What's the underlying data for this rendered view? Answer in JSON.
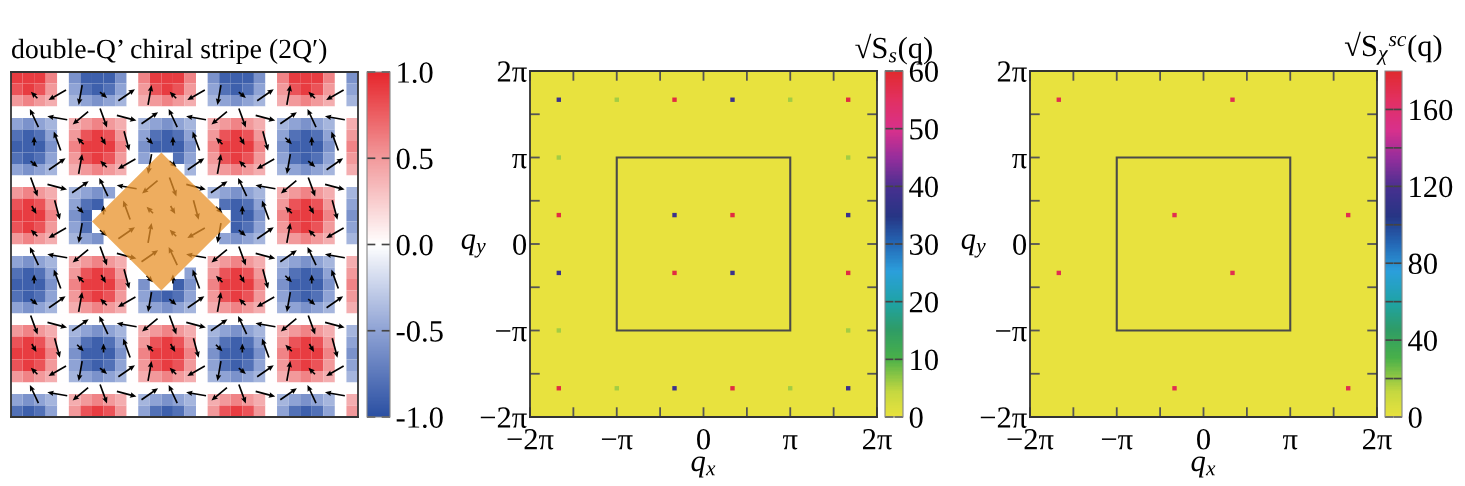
{
  "chart_data": [
    {
      "type": "heatmap",
      "title": "double-Q’ chiral stripe (2Q′)",
      "categories": [
        null,
        null,
        null,
        null,
        null,
        null,
        null,
        null,
        null,
        null,
        null,
        null,
        null,
        null,
        null,
        null,
        null,
        null,
        null,
        null,
        null,
        null,
        null,
        null,
        null,
        null,
        null,
        null,
        null,
        null
      ],
      "y_categories": [
        null,
        null,
        null,
        null,
        null,
        null,
        null,
        null,
        null,
        null,
        null,
        null,
        null,
        null,
        null,
        null,
        null,
        null,
        null,
        null,
        null,
        null,
        null,
        null,
        null,
        null,
        null,
        null,
        null,
        null
      ],
      "cells": [
        [
          0.9,
          0.9,
          0.9,
          0.6,
          0,
          -0.6,
          -0.9,
          -0.9,
          -0.9,
          -0.6,
          0,
          0.6,
          0.9,
          0.9,
          0.9,
          0.6,
          0,
          -0.6,
          -0.9,
          -0.9,
          -0.9,
          -0.6,
          0,
          0.6,
          0.9,
          0.9,
          0.9,
          0.6,
          0,
          -0.6
        ],
        [
          0.8,
          0.9,
          0.8,
          0.5,
          0,
          -0.5,
          -0.8,
          -0.9,
          -0.8,
          -0.5,
          0,
          0.5,
          0.8,
          0.9,
          0.8,
          0.5,
          0,
          -0.5,
          -0.8,
          -0.9,
          -0.8,
          -0.5,
          0,
          0.5,
          0.8,
          0.9,
          0.8,
          0.5,
          0,
          -0.5
        ],
        [
          0.5,
          0.6,
          0.5,
          0.4,
          0,
          -0.4,
          -0.5,
          -0.6,
          -0.5,
          -0.4,
          0,
          0.4,
          0.5,
          0.6,
          0.5,
          0.4,
          0,
          -0.4,
          -0.5,
          -0.6,
          -0.5,
          -0.4,
          0,
          0.4,
          0.5,
          0.6,
          0.5,
          0.4,
          0,
          -0.4
        ],
        [
          0,
          0,
          0,
          0,
          0,
          0,
          0,
          0,
          0,
          0,
          0,
          0,
          0,
          0,
          0,
          0,
          0,
          0,
          0,
          0,
          0,
          0,
          0,
          0,
          0,
          0,
          0,
          0,
          0,
          0
        ],
        [
          -0.5,
          -0.6,
          -0.5,
          -0.4,
          0,
          0.4,
          0.5,
          0.6,
          0.5,
          0.4,
          0,
          -0.4,
          -0.5,
          -0.6,
          -0.5,
          -0.4,
          0,
          0.4,
          0.5,
          0.6,
          0.5,
          0.4,
          0,
          -0.4,
          -0.5,
          -0.6,
          -0.5,
          -0.4,
          0,
          0.4
        ],
        [
          -0.8,
          -0.9,
          -0.8,
          -0.5,
          0,
          0.5,
          0.8,
          0.9,
          0.8,
          0.5,
          0,
          -0.5,
          -0.8,
          -0.9,
          -0.8,
          -0.5,
          0,
          0.5,
          0.8,
          0.9,
          0.8,
          0.5,
          0,
          -0.5,
          -0.8,
          -0.9,
          -0.8,
          -0.5,
          0,
          0.5
        ],
        [
          -0.9,
          -0.9,
          -0.9,
          -0.6,
          0,
          0.6,
          0.9,
          0.9,
          0.9,
          0.6,
          0,
          -0.6,
          -0.9,
          -0.9,
          -0.9,
          -0.6,
          0,
          0.6,
          0.9,
          0.9,
          0.9,
          0.6,
          0,
          -0.6,
          -0.9,
          -0.9,
          -0.9,
          -0.6,
          0,
          0.6
        ],
        [
          -0.8,
          -0.9,
          -0.8,
          -0.5,
          0,
          0.5,
          0.8,
          0.9,
          0.8,
          0.5,
          0,
          -0.5,
          null,
          null,
          -0.8,
          -0.5,
          0,
          0.5,
          0.8,
          0.9,
          0.8,
          0.5,
          0,
          -0.5,
          -0.8,
          -0.9,
          -0.8,
          -0.5,
          0,
          0.5
        ],
        [
          -0.5,
          -0.6,
          -0.5,
          -0.4,
          0,
          0.4,
          0.5,
          0.6,
          0.5,
          0.4,
          0,
          null,
          null,
          null,
          null,
          -0.4,
          0,
          0.4,
          0.5,
          0.6,
          0.5,
          0.4,
          0,
          -0.4,
          -0.5,
          -0.6,
          -0.5,
          -0.4,
          0,
          0.4
        ],
        [
          0,
          0,
          0,
          0,
          0,
          0,
          0,
          0,
          0,
          0,
          null,
          null,
          null,
          null,
          null,
          null,
          0,
          0,
          0,
          0,
          0,
          0,
          0,
          0,
          0,
          0,
          0,
          0,
          0,
          0
        ],
        [
          0.5,
          0.6,
          0.5,
          0.4,
          0,
          -0.4,
          -0.5,
          -0.6,
          -0.5,
          null,
          null,
          null,
          null,
          null,
          null,
          null,
          null,
          -0.4,
          -0.5,
          -0.6,
          -0.5,
          -0.4,
          0,
          0.4,
          0.5,
          0.6,
          0.5,
          0.4,
          0,
          -0.4
        ],
        [
          0.8,
          0.9,
          0.8,
          0.5,
          0,
          -0.5,
          -0.8,
          -0.9,
          null,
          null,
          null,
          null,
          null,
          null,
          null,
          null,
          null,
          null,
          -0.8,
          -0.9,
          -0.8,
          -0.5,
          0,
          0.5,
          0.8,
          0.9,
          0.8,
          0.5,
          0,
          -0.5
        ],
        [
          0.9,
          0.9,
          0.9,
          0.6,
          0,
          -0.6,
          -0.9,
          null,
          null,
          null,
          null,
          null,
          null,
          null,
          null,
          null,
          null,
          null,
          null,
          -0.9,
          -0.9,
          -0.6,
          0,
          0.6,
          0.9,
          0.9,
          0.9,
          0.6,
          0,
          -0.6
        ],
        [
          0.8,
          0.9,
          0.8,
          0.5,
          0,
          -0.5,
          -0.8,
          null,
          null,
          null,
          null,
          null,
          null,
          null,
          null,
          null,
          null,
          null,
          null,
          -0.9,
          -0.8,
          -0.5,
          0,
          0.5,
          0.8,
          0.9,
          0.8,
          0.5,
          0,
          -0.5
        ],
        [
          0.5,
          0.6,
          0.5,
          0.4,
          0,
          -0.4,
          -0.5,
          -0.6,
          null,
          null,
          null,
          null,
          null,
          null,
          null,
          null,
          null,
          null,
          -0.5,
          -0.6,
          -0.5,
          -0.4,
          0,
          0.4,
          0.5,
          0.6,
          0.5,
          0.4,
          0,
          -0.4
        ],
        [
          0,
          0,
          0,
          0,
          0,
          0,
          0,
          0,
          0,
          null,
          null,
          null,
          null,
          null,
          null,
          null,
          null,
          0,
          0,
          0,
          0,
          0,
          0,
          0,
          0,
          0,
          0,
          0,
          0,
          0
        ],
        [
          -0.5,
          -0.6,
          -0.5,
          -0.4,
          0,
          0.4,
          0.5,
          0.6,
          0.5,
          0.4,
          null,
          null,
          null,
          null,
          null,
          null,
          0,
          0.4,
          0.5,
          0.6,
          0.5,
          0.4,
          0,
          -0.4,
          -0.5,
          -0.6,
          -0.5,
          -0.4,
          0,
          0.4
        ],
        [
          -0.8,
          -0.9,
          -0.8,
          -0.5,
          0,
          0.5,
          0.8,
          0.9,
          0.8,
          0.5,
          0,
          null,
          null,
          null,
          null,
          -0.5,
          0,
          0.5,
          0.8,
          0.9,
          0.8,
          0.5,
          0,
          -0.5,
          -0.8,
          -0.9,
          -0.8,
          -0.5,
          0,
          0.5
        ],
        [
          -0.9,
          -0.9,
          -0.9,
          -0.6,
          0,
          0.6,
          0.9,
          0.9,
          0.9,
          0.6,
          0,
          -0.6,
          null,
          null,
          -0.9,
          -0.6,
          0,
          0.6,
          0.9,
          0.9,
          0.9,
          0.6,
          0,
          -0.6,
          -0.9,
          -0.9,
          -0.9,
          -0.6,
          0,
          0.6
        ],
        [
          -0.8,
          -0.9,
          -0.8,
          -0.5,
          0,
          0.5,
          0.8,
          0.9,
          0.8,
          0.5,
          0,
          -0.5,
          -0.8,
          -0.9,
          -0.8,
          -0.5,
          0,
          0.5,
          0.8,
          0.9,
          0.8,
          0.5,
          0,
          -0.5,
          -0.8,
          -0.9,
          -0.8,
          -0.5,
          0,
          0.5
        ],
        [
          -0.5,
          -0.6,
          -0.5,
          -0.4,
          0,
          0.4,
          0.5,
          0.6,
          0.5,
          0.4,
          0,
          -0.4,
          -0.5,
          -0.6,
          -0.5,
          -0.4,
          0,
          0.4,
          0.5,
          0.6,
          0.5,
          0.4,
          0,
          -0.4,
          -0.5,
          -0.6,
          -0.5,
          -0.4,
          0,
          0.4
        ],
        [
          0,
          0,
          0,
          0,
          0,
          0,
          0,
          0,
          0,
          0,
          0,
          0,
          0,
          0,
          0,
          0,
          0,
          0,
          0,
          0,
          0,
          0,
          0,
          0,
          0,
          0,
          0,
          0,
          0,
          0
        ],
        [
          0.5,
          0.6,
          0.5,
          0.4,
          0,
          -0.4,
          -0.5,
          -0.6,
          -0.5,
          -0.4,
          0,
          0.4,
          0.5,
          0.6,
          0.5,
          0.4,
          0,
          -0.4,
          -0.5,
          -0.6,
          -0.5,
          -0.4,
          0,
          0.4,
          0.5,
          0.6,
          0.5,
          0.4,
          0,
          -0.4
        ],
        [
          0.8,
          0.9,
          0.8,
          0.5,
          0,
          -0.5,
          -0.8,
          -0.9,
          -0.8,
          -0.5,
          0,
          0.5,
          0.8,
          0.9,
          0.8,
          0.5,
          0,
          -0.5,
          -0.8,
          -0.9,
          -0.8,
          -0.5,
          0,
          0.5,
          0.8,
          0.9,
          0.8,
          0.5,
          0,
          -0.5
        ],
        [
          0.9,
          0.9,
          0.9,
          0.6,
          0,
          -0.6,
          -0.9,
          -0.9,
          -0.9,
          -0.6,
          0,
          0.6,
          0.9,
          0.9,
          0.9,
          0.6,
          0,
          -0.6,
          -0.9,
          -0.9,
          -0.9,
          -0.6,
          0,
          0.6,
          0.9,
          0.9,
          0.9,
          0.6,
          0,
          -0.6
        ],
        [
          0.8,
          0.9,
          0.8,
          0.5,
          0,
          -0.5,
          -0.8,
          -0.9,
          -0.8,
          -0.5,
          0,
          0.5,
          0.8,
          0.9,
          0.8,
          0.5,
          0,
          -0.5,
          -0.8,
          -0.9,
          -0.8,
          -0.5,
          0,
          0.5,
          0.8,
          0.9,
          0.8,
          0.5,
          0,
          -0.5
        ],
        [
          0.5,
          0.6,
          0.5,
          0.4,
          0,
          -0.4,
          -0.5,
          -0.6,
          -0.5,
          -0.4,
          0,
          0.4,
          0.5,
          0.6,
          0.5,
          0.4,
          0,
          -0.4,
          -0.5,
          -0.6,
          -0.5,
          -0.4,
          0,
          0.4,
          0.5,
          0.6,
          0.5,
          0.4,
          0,
          -0.4
        ],
        [
          0,
          0,
          0,
          0,
          0,
          0,
          0,
          0,
          0,
          0,
          0,
          0,
          0,
          0,
          0,
          0,
          0,
          0,
          0,
          0,
          0,
          0,
          0,
          0,
          0,
          0,
          0,
          0,
          0,
          0
        ],
        [
          -0.5,
          -0.6,
          -0.5,
          -0.4,
          0,
          0.4,
          0.5,
          0.6,
          0.5,
          0.4,
          0,
          -0.4,
          -0.5,
          -0.6,
          -0.5,
          -0.4,
          0,
          0.4,
          0.5,
          0.6,
          0.5,
          0.4,
          0,
          -0.4,
          -0.5,
          -0.6,
          -0.5,
          -0.4,
          0,
          0.4
        ],
        [
          -0.8,
          -0.9,
          -0.8,
          -0.5,
          0,
          0.5,
          0.8,
          0.9,
          0.8,
          0.5,
          0,
          -0.5,
          -0.8,
          -0.9,
          -0.8,
          -0.5,
          0,
          0.5,
          0.8,
          0.9,
          0.8,
          0.5,
          0,
          -0.5,
          -0.8,
          -0.9,
          -0.8,
          -0.5,
          0,
          0.5
        ]
      ],
      "clim": [
        -1,
        1
      ],
      "cticks": [
        {
          "value": -1,
          "label": "-1.0"
        },
        {
          "value": -0.5,
          "label": "-0.5"
        },
        {
          "value": 0,
          "label": "0.0"
        },
        {
          "value": 0.5,
          "label": "0.5"
        },
        {
          "value": 1,
          "label": "1.0"
        }
      ]
    },
    {
      "type": "scatter",
      "marker": "square",
      "xlabel": "q$_{x}$",
      "ylabel": "q$_{y}$",
      "clabel": "√S$_{s}$(q)",
      "xlim": [
        -6.2832,
        6.2832
      ],
      "ylim": [
        -6.2832,
        6.2832
      ],
      "xticks": [
        {
          "value": -6.2832,
          "label": "−2π"
        },
        {
          "value": -4.7124,
          "label": null
        },
        {
          "value": -3.1416,
          "label": "−π"
        },
        {
          "value": -1.5708,
          "label": null
        },
        0,
        {
          "value": 1.5708,
          "label": null
        },
        {
          "value": 3.1416,
          "label": "π"
        },
        {
          "value": 4.7124,
          "label": null
        },
        {
          "value": 6.2832,
          "label": "2π"
        }
      ],
      "yticks": [
        {
          "value": -6.2832,
          "label": "−2π"
        },
        {
          "value": -4.7124,
          "label": null
        },
        {
          "value": -3.1416,
          "label": "−π"
        },
        {
          "value": -1.5708,
          "label": null
        },
        0,
        {
          "value": 1.5708,
          "label": null
        },
        {
          "value": 3.1416,
          "label": "π"
        },
        {
          "value": 4.7124,
          "label": null
        },
        {
          "value": 6.2832,
          "label": "2π"
        }
      ],
      "clim": [
        0,
        60
      ],
      "cticks": [
        0,
        10,
        20,
        30,
        40,
        50,
        60
      ],
      "x": [
        -5.24,
        -3.14,
        -1.05,
        1.05,
        3.14,
        5.24,
        -5.24,
        5.24,
        -5.24,
        -1.05,
        1.05,
        5.24,
        -5.24,
        -1.05,
        1.05,
        5.24,
        -5.24,
        5.24,
        -5.24,
        -3.14,
        -1.05,
        1.05,
        3.14,
        5.24
      ],
      "values": [
        5.24,
        5.24,
        5.24,
        5.24,
        5.24,
        5.24,
        3.14,
        3.14,
        1.05,
        1.05,
        1.05,
        1.05,
        -1.05,
        -1.05,
        -1.05,
        -1.05,
        -3.14,
        -3.14,
        -5.24,
        -5.24,
        -5.24,
        -5.24,
        -5.24,
        -5.24
      ],
      "cvalues": [
        38,
        6,
        58,
        38,
        6,
        58,
        6,
        6,
        58,
        38,
        58,
        38,
        38,
        58,
        38,
        58,
        6,
        6,
        58,
        6,
        38,
        58,
        6,
        38
      ]
    },
    {
      "type": "scatter",
      "marker": "square",
      "xlabel": "q$_{x}$",
      "ylabel": "q$_{y}$",
      "clabel": "√S$_{χ}$$^{sc}$(q)",
      "xlim": [
        -6.2832,
        6.2832
      ],
      "ylim": [
        -6.2832,
        6.2832
      ],
      "xticks": [
        {
          "value": -6.2832,
          "label": "−2π"
        },
        {
          "value": -4.7124,
          "label": null
        },
        {
          "value": -3.1416,
          "label": "−π"
        },
        {
          "value": -1.5708,
          "label": null
        },
        0,
        {
          "value": 1.5708,
          "label": null
        },
        {
          "value": 3.1416,
          "label": "π"
        },
        {
          "value": 4.7124,
          "label": null
        },
        {
          "value": 6.2832,
          "label": "2π"
        }
      ],
      "yticks": [
        {
          "value": -6.2832,
          "label": "−2π"
        },
        {
          "value": -4.7124,
          "label": null
        },
        {
          "value": -3.1416,
          "label": "−π"
        },
        {
          "value": -1.5708,
          "label": null
        },
        0,
        {
          "value": 1.5708,
          "label": null
        },
        {
          "value": 3.1416,
          "label": "π"
        },
        {
          "value": 4.7124,
          "label": null
        },
        {
          "value": 6.2832,
          "label": "2π"
        }
      ],
      "clim": [
        0,
        180
      ],
      "cticks": [
        0,
        {
          "value": 20,
          "label": null
        },
        40,
        {
          "value": 60,
          "label": null
        },
        80,
        {
          "value": 100,
          "label": null
        },
        120,
        {
          "value": 140,
          "label": null
        },
        160
      ],
      "x": [
        -5.24,
        1.05,
        -1.05,
        5.24,
        -5.24,
        1.05,
        -1.05,
        5.24
      ],
      "values": [
        5.24,
        5.24,
        1.05,
        1.05,
        -1.05,
        -1.05,
        -5.24,
        -5.24
      ],
      "cvalues": [
        170,
        170,
        170,
        170,
        170,
        170,
        170,
        170
      ]
    }
  ]
}
